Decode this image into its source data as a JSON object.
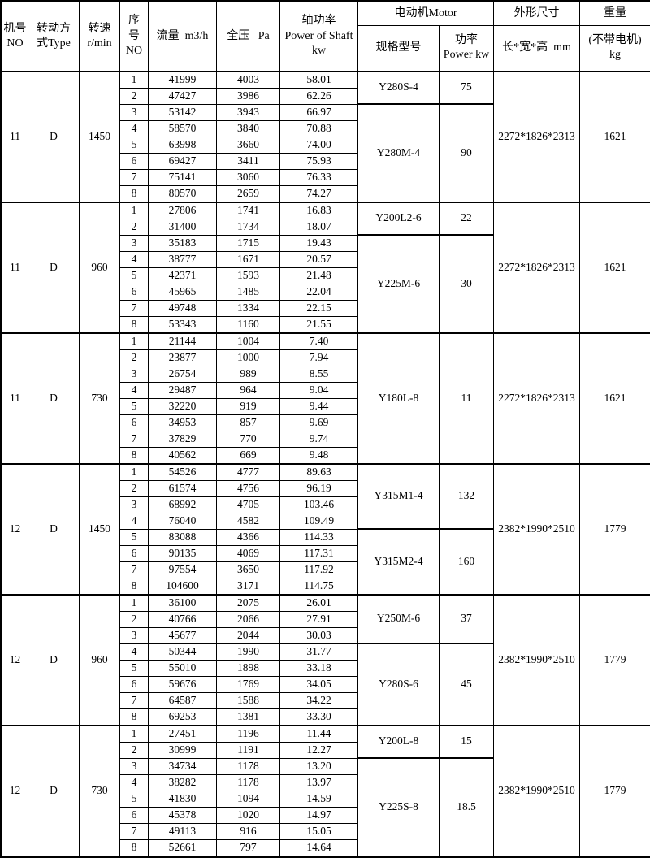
{
  "header": {
    "machine_no": "机号\nNO",
    "type": "转动方\n式Type",
    "speed": "转速\nr/min",
    "serial": "序\n号\nNO",
    "flow": "流量  m3/h",
    "pressure": "全压   Pa",
    "shaft_power": "轴功率\nPower of Shaft\nkw",
    "motor_group": "电动机Motor",
    "motor_model": "规格型号",
    "motor_power": "功率\nPower kw",
    "dim_group": "外形尺寸",
    "dim_sub": "长*宽*高  mm",
    "weight_group": "重量",
    "weight_sub": "(不带电机)\nkg"
  },
  "blocks": [
    {
      "machine_no": "11",
      "type": "D",
      "speed": "1450",
      "rows": [
        {
          "idx": "1",
          "flow": "41999",
          "pressure": "4003",
          "power": "58.01"
        },
        {
          "idx": "2",
          "flow": "47427",
          "pressure": "3986",
          "power": "62.26"
        },
        {
          "idx": "3",
          "flow": "53142",
          "pressure": "3943",
          "power": "66.97"
        },
        {
          "idx": "4",
          "flow": "58570",
          "pressure": "3840",
          "power": "70.88"
        },
        {
          "idx": "5",
          "flow": "63998",
          "pressure": "3660",
          "power": "74.00"
        },
        {
          "idx": "6",
          "flow": "69427",
          "pressure": "3411",
          "power": "75.93"
        },
        {
          "idx": "7",
          "flow": "75141",
          "pressure": "3060",
          "power": "76.33"
        },
        {
          "idx": "8",
          "flow": "80570",
          "pressure": "2659",
          "power": "74.27"
        }
      ],
      "motors": [
        {
          "model": "Y280S-4",
          "power": "75",
          "rows": 2
        },
        {
          "model": "Y280M-4",
          "power": "90",
          "rows": 6
        }
      ],
      "dimensions": "2272*1826*2313",
      "weight": "1621"
    },
    {
      "machine_no": "11",
      "type": "D",
      "speed": "960",
      "rows": [
        {
          "idx": "1",
          "flow": "27806",
          "pressure": "1741",
          "power": "16.83"
        },
        {
          "idx": "2",
          "flow": "31400",
          "pressure": "1734",
          "power": "18.07"
        },
        {
          "idx": "3",
          "flow": "35183",
          "pressure": "1715",
          "power": "19.43"
        },
        {
          "idx": "4",
          "flow": "38777",
          "pressure": "1671",
          "power": "20.57"
        },
        {
          "idx": "5",
          "flow": "42371",
          "pressure": "1593",
          "power": "21.48"
        },
        {
          "idx": "6",
          "flow": "45965",
          "pressure": "1485",
          "power": "22.04"
        },
        {
          "idx": "7",
          "flow": "49748",
          "pressure": "1334",
          "power": "22.15"
        },
        {
          "idx": "8",
          "flow": "53343",
          "pressure": "1160",
          "power": "21.55"
        }
      ],
      "motors": [
        {
          "model": "Y200L2-6",
          "power": "22",
          "rows": 2
        },
        {
          "model": "Y225M-6",
          "power": "30",
          "rows": 6
        }
      ],
      "dimensions": "2272*1826*2313",
      "weight": "1621"
    },
    {
      "machine_no": "11",
      "type": "D",
      "speed": "730",
      "rows": [
        {
          "idx": "1",
          "flow": "21144",
          "pressure": "1004",
          "power": "7.40"
        },
        {
          "idx": "2",
          "flow": "23877",
          "pressure": "1000",
          "power": "7.94"
        },
        {
          "idx": "3",
          "flow": "26754",
          "pressure": "989",
          "power": "8.55"
        },
        {
          "idx": "4",
          "flow": "29487",
          "pressure": "964",
          "power": "9.04"
        },
        {
          "idx": "5",
          "flow": "32220",
          "pressure": "919",
          "power": "9.44"
        },
        {
          "idx": "6",
          "flow": "34953",
          "pressure": "857",
          "power": "9.69"
        },
        {
          "idx": "7",
          "flow": "37829",
          "pressure": "770",
          "power": "9.74"
        },
        {
          "idx": "8",
          "flow": "40562",
          "pressure": "669",
          "power": "9.48"
        }
      ],
      "motors": [
        {
          "model": "Y180L-8",
          "power": "11",
          "rows": 8
        }
      ],
      "dimensions": "2272*1826*2313",
      "weight": "1621"
    },
    {
      "machine_no": "12",
      "type": "D",
      "speed": "1450",
      "rows": [
        {
          "idx": "1",
          "flow": "54526",
          "pressure": "4777",
          "power": "89.63"
        },
        {
          "idx": "2",
          "flow": "61574",
          "pressure": "4756",
          "power": "96.19"
        },
        {
          "idx": "3",
          "flow": "68992",
          "pressure": "4705",
          "power": "103.46"
        },
        {
          "idx": "4",
          "flow": "76040",
          "pressure": "4582",
          "power": "109.49"
        },
        {
          "idx": "5",
          "flow": "83088",
          "pressure": "4366",
          "power": "114.33"
        },
        {
          "idx": "6",
          "flow": "90135",
          "pressure": "4069",
          "power": "117.31"
        },
        {
          "idx": "7",
          "flow": "97554",
          "pressure": "3650",
          "power": "117.92"
        },
        {
          "idx": "8",
          "flow": "104600",
          "pressure": "3171",
          "power": "114.75"
        }
      ],
      "motors": [
        {
          "model": "Y315M1-4",
          "power": "132",
          "rows": 4
        },
        {
          "model": "Y315M2-4",
          "power": "160",
          "rows": 4
        }
      ],
      "dimensions": "2382*1990*2510",
      "weight": "1779"
    },
    {
      "machine_no": "12",
      "type": "D",
      "speed": "960",
      "rows": [
        {
          "idx": "1",
          "flow": "36100",
          "pressure": "2075",
          "power": "26.01"
        },
        {
          "idx": "2",
          "flow": "40766",
          "pressure": "2066",
          "power": "27.91"
        },
        {
          "idx": "3",
          "flow": "45677",
          "pressure": "2044",
          "power": "30.03"
        },
        {
          "idx": "4",
          "flow": "50344",
          "pressure": "1990",
          "power": "31.77"
        },
        {
          "idx": "5",
          "flow": "55010",
          "pressure": "1898",
          "power": "33.18"
        },
        {
          "idx": "6",
          "flow": "59676",
          "pressure": "1769",
          "power": "34.05"
        },
        {
          "idx": "7",
          "flow": "64587",
          "pressure": "1588",
          "power": "34.22"
        },
        {
          "idx": "8",
          "flow": "69253",
          "pressure": "1381",
          "power": "33.30"
        }
      ],
      "motors": [
        {
          "model": "Y250M-6",
          "power": "37",
          "rows": 3
        },
        {
          "model": "Y280S-6",
          "power": "45",
          "rows": 5
        }
      ],
      "dimensions": "2382*1990*2510",
      "weight": "1779"
    },
    {
      "machine_no": "12",
      "type": "D",
      "speed": "730",
      "rows": [
        {
          "idx": "1",
          "flow": "27451",
          "pressure": "1196",
          "power": "11.44"
        },
        {
          "idx": "2",
          "flow": "30999",
          "pressure": "1191",
          "power": "12.27"
        },
        {
          "idx": "3",
          "flow": "34734",
          "pressure": "1178",
          "power": "13.20"
        },
        {
          "idx": "4",
          "flow": "38282",
          "pressure": "1178",
          "power": "13.97"
        },
        {
          "idx": "5",
          "flow": "41830",
          "pressure": "1094",
          "power": "14.59"
        },
        {
          "idx": "6",
          "flow": "45378",
          "pressure": "1020",
          "power": "14.97"
        },
        {
          "idx": "7",
          "flow": "49113",
          "pressure": "916",
          "power": "15.05"
        },
        {
          "idx": "8",
          "flow": "52661",
          "pressure": "797",
          "power": "14.64"
        }
      ],
      "motors": [
        {
          "model": "Y200L-8",
          "power": "15",
          "rows": 2
        },
        {
          "model": "Y225S-8",
          "power": "18.5",
          "rows": 6
        }
      ],
      "dimensions": "2382*1990*2510",
      "weight": "1779"
    }
  ]
}
